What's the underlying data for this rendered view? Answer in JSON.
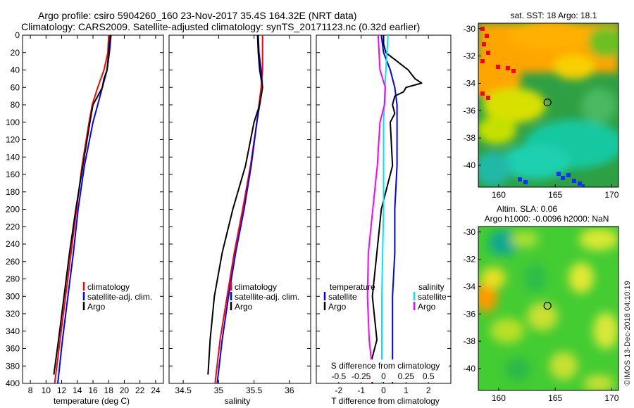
{
  "title_line1": "Argo profile: csiro 5904260_160 23-Nov-2017 35.4S 164.32E (NRT data)",
  "title_line2": "Climatology: CARS2009. Satellite-adjusted climatology: synTS_20171123.nc (0.32d earlier)",
  "credit": "©IMOS 13-Dec-2018 04:10:19",
  "colors": {
    "climatology": "#ff0000",
    "satellite": "#0000ff",
    "argo": "#000000",
    "sat_s": "#00e5ff",
    "argo_s": "#ff00ff"
  },
  "chart_data": [
    {
      "type": "line",
      "name": "temperature",
      "xlabel": "temperature (deg C)",
      "xlim": [
        7,
        25
      ],
      "xticks": [
        8,
        10,
        12,
        14,
        16,
        18,
        20,
        22,
        24
      ],
      "ylim": [
        400,
        0
      ],
      "yticks": [
        0,
        20,
        40,
        60,
        80,
        100,
        120,
        140,
        160,
        180,
        200,
        220,
        240,
        260,
        280,
        300,
        320,
        340,
        360,
        380,
        400
      ],
      "legend": [
        "climatology",
        "satellite-adj. clim.",
        "Argo"
      ],
      "series": [
        {
          "name": "climatology",
          "color": "#ff0000",
          "depth": [
            0,
            20,
            40,
            60,
            80,
            100,
            150,
            200,
            250,
            300,
            350,
            400
          ],
          "value": [
            18.0,
            17.9,
            17.4,
            16.6,
            15.9,
            15.5,
            14.6,
            13.9,
            13.2,
            12.5,
            11.8,
            11.1
          ]
        },
        {
          "name": "satellite-adj. clim.",
          "color": "#0000ff",
          "depth": [
            0,
            20,
            40,
            60,
            80,
            100,
            150,
            200,
            250,
            300,
            350,
            400
          ],
          "value": [
            18.3,
            18.1,
            17.8,
            17.2,
            16.6,
            16.0,
            14.9,
            14.1,
            13.5,
            12.8,
            12.1,
            11.5
          ]
        },
        {
          "name": "Argo",
          "color": "#000000",
          "depth": [
            0,
            20,
            30,
            40,
            50,
            55,
            60,
            70,
            80,
            100,
            150,
            200,
            250,
            300,
            350,
            390
          ],
          "value": [
            18.2,
            18.0,
            17.9,
            17.8,
            17.4,
            17.3,
            17.2,
            16.6,
            16.0,
            15.6,
            14.7,
            13.8,
            13.0,
            12.3,
            11.6,
            11.0
          ]
        }
      ]
    },
    {
      "type": "line",
      "name": "salinity",
      "xlabel": "salinity",
      "xlim": [
        34.3,
        36.3
      ],
      "xticks": [
        34.5,
        35,
        35.5,
        36
      ],
      "xticklabels": [
        "34.5",
        "35",
        "35.5",
        "36"
      ],
      "ylim": [
        400,
        0
      ],
      "legend": [
        "climatology",
        "satellite-adj. clim.",
        "Argo"
      ],
      "series": [
        {
          "name": "climatology",
          "color": "#ff0000",
          "depth": [
            0,
            20,
            40,
            60,
            80,
            100,
            150,
            200,
            250,
            300,
            350,
            400
          ],
          "value": [
            35.62,
            35.62,
            35.62,
            35.6,
            35.57,
            35.54,
            35.45,
            35.34,
            35.22,
            35.12,
            35.02,
            34.95
          ]
        },
        {
          "name": "satellite-adj. clim.",
          "color": "#0000ff",
          "depth": [
            0,
            20,
            40,
            60,
            80,
            100,
            150,
            200,
            250,
            300,
            350,
            400
          ],
          "value": [
            35.56,
            35.57,
            35.6,
            35.62,
            35.58,
            35.54,
            35.46,
            35.36,
            35.24,
            35.14,
            35.05,
            34.98
          ]
        },
        {
          "name": "Argo",
          "color": "#000000",
          "depth": [
            0,
            20,
            40,
            60,
            80,
            100,
            150,
            200,
            250,
            300,
            350,
            390
          ],
          "value": [
            35.55,
            35.56,
            35.58,
            35.62,
            35.58,
            35.5,
            35.38,
            35.2,
            35.05,
            34.94,
            34.88,
            34.85
          ]
        }
      ]
    },
    {
      "type": "line",
      "name": "difference",
      "xlabel": "T difference from climatology",
      "xlabel_top": "S difference from climatology",
      "xlim": [
        -3,
        3
      ],
      "xticks": [
        -2,
        -1,
        0,
        1,
        2
      ],
      "xticks_s": [
        -0.5,
        -0.25,
        0,
        0.25,
        0.5
      ],
      "xticklabels_s": [
        "-0.5",
        "-0.25",
        "0",
        "0.25",
        "0.5"
      ],
      "ylim": [
        400,
        0
      ],
      "legend_temperature": {
        "title": "temperature",
        "items": [
          "satellite",
          "Argo"
        ]
      },
      "legend_salinity": {
        "title": "salinity",
        "items": [
          "satellite",
          "Argo"
        ]
      },
      "series": [
        {
          "name": "T satellite",
          "color": "#0000ff",
          "depth": [
            0,
            20,
            40,
            60,
            80,
            100,
            150,
            200,
            250,
            300,
            350,
            400
          ],
          "value": [
            -0.1,
            0.0,
            0.3,
            0.5,
            0.6,
            0.6,
            0.6,
            0.5,
            0.5,
            0.4,
            0.4,
            0.4
          ]
        },
        {
          "name": "T Argo",
          "color": "#000000",
          "depth": [
            0,
            10,
            20,
            30,
            40,
            50,
            55,
            60,
            65,
            70,
            80,
            90,
            100,
            150,
            200,
            250,
            300,
            350,
            380,
            400
          ],
          "value": [
            0.0,
            0.0,
            0.1,
            0.6,
            1.1,
            1.4,
            1.7,
            1.0,
            0.9,
            0.5,
            0.4,
            0.5,
            0.3,
            0.4,
            -0.1,
            -0.3,
            -0.5,
            -0.3,
            -0.6,
            -0.5
          ]
        },
        {
          "name": "S satellite",
          "color": "#00e5ff",
          "depth": [
            0,
            50,
            100,
            150,
            200,
            250,
            300,
            350,
            400
          ],
          "value": [
            0.05,
            0.02,
            0.0,
            0.0,
            0.0,
            -0.01,
            -0.02,
            -0.02,
            -0.02
          ]
        },
        {
          "name": "S Argo",
          "color": "#ff00ff",
          "depth": [
            0,
            20,
            40,
            60,
            80,
            100,
            150,
            200,
            250,
            300,
            350,
            390
          ],
          "value": [
            -0.06,
            -0.05,
            -0.04,
            0.02,
            0.01,
            -0.04,
            -0.07,
            -0.12,
            -0.17,
            -0.18,
            -0.16,
            -0.12
          ]
        }
      ]
    },
    {
      "type": "heatmap",
      "name": "sst map",
      "title": "sat. SST: 18 Argo: 18.1",
      "xticks": [
        160,
        165,
        170
      ],
      "yticks": [
        -30,
        -32,
        -34,
        -36,
        -38,
        -40
      ],
      "xlim": [
        158.2,
        170.6
      ],
      "ylim": [
        -41.6,
        -29.6
      ],
      "argo_position": [
        164.32,
        -35.4
      ]
    },
    {
      "type": "heatmap",
      "name": "sla map",
      "title_line1": "Altim. SLA: 0.06",
      "title_line2": "Argo h1000: -0.0096 h2000: NaN",
      "xticks": [
        160,
        165,
        170
      ],
      "yticks": [
        -30,
        -32,
        -34,
        -36,
        -38,
        -40
      ],
      "xlim": [
        158.2,
        170.6
      ],
      "ylim": [
        -41.6,
        -29.6
      ],
      "argo_position": [
        164.32,
        -35.4
      ]
    }
  ]
}
